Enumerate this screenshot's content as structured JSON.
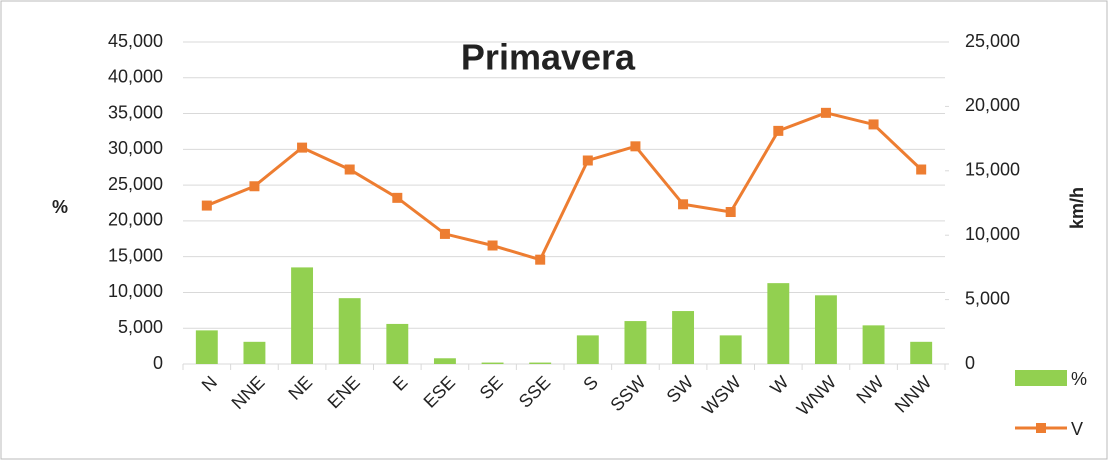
{
  "chart_data": {
    "type": "combo",
    "title": "Primavera",
    "y_label": "%",
    "y2_label": "km/h",
    "categories": [
      "N",
      "NNE",
      "NE",
      "ENE",
      "E",
      "ESE",
      "SE",
      "SSE",
      "S",
      "SSW",
      "SW",
      "WSW",
      "W",
      "WNW",
      "NW",
      "NNW"
    ],
    "series": [
      {
        "name": "%",
        "type": "bar",
        "color": "#92d050",
        "axis": "y",
        "values": [
          4.7,
          3.1,
          13.5,
          9.2,
          5.6,
          0.8,
          0.2,
          0.2,
          4.0,
          6.0,
          7.4,
          4.0,
          11.3,
          9.6,
          5.4,
          3.1
        ]
      },
      {
        "name": "V",
        "type": "line",
        "color": "#ed7d31",
        "axis": "y2",
        "values": [
          12.3,
          13.8,
          16.8,
          15.1,
          12.9,
          10.1,
          9.2,
          8.1,
          15.8,
          16.9,
          12.4,
          11.8,
          18.1,
          19.5,
          18.6,
          15.1
        ]
      }
    ],
    "ylim": [
      0,
      45
    ],
    "yticks": [
      0,
      {
        "value": 5,
        "label": "5,000"
      },
      {
        "value": 10,
        "label": "10,000"
      },
      {
        "value": 15,
        "label": "15,000"
      },
      {
        "value": 20,
        "label": "20,000"
      },
      {
        "value": 25,
        "label": "25,000"
      },
      {
        "value": 30,
        "label": "30,000"
      },
      {
        "value": 35,
        "label": "35,000"
      },
      {
        "value": 40,
        "label": "40,000"
      },
      {
        "value": 45,
        "label": "45,000"
      }
    ],
    "y2lim": [
      0,
      25
    ],
    "y2ticks": [
      0,
      {
        "value": 5,
        "label": "5,000"
      },
      {
        "value": 10,
        "label": "10,000"
      },
      {
        "value": 15,
        "label": "15,000"
      },
      {
        "value": 20,
        "label": "20,000"
      },
      {
        "value": 25,
        "label": "25,000"
      }
    ],
    "legend": "right"
  }
}
